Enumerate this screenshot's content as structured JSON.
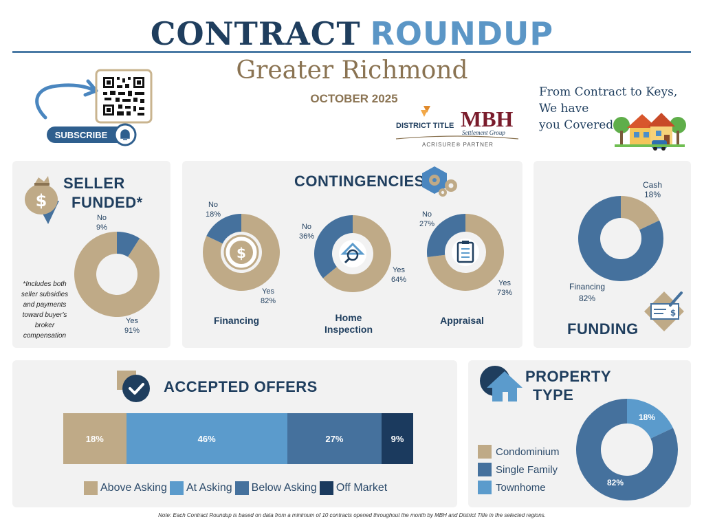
{
  "header": {
    "title_part1": "CONTRACT",
    "title_part2": "ROUNDUP",
    "region": "Greater Richmond",
    "month": "OCTOBER 2025",
    "subscribe_label": "SUBSCRIBE",
    "tagline_line1": "From Contract to Keys,",
    "tagline_line2": "We have",
    "tagline_line3": "you Covered"
  },
  "logos": {
    "district_title": "DISTRICT TITLE",
    "mbh": "MBH",
    "mbh_sub": "Settlement Group",
    "acrisure": "ACRISURE® PARTNER"
  },
  "colors": {
    "tan": "#bfaa87",
    "navy_blue": "#45719d",
    "light_blue": "#5b9bcc",
    "dark_navy": "#1b3a5e",
    "panel_bg": "#f2f2f2"
  },
  "seller_funded": {
    "title_line1": "SELLER",
    "title_line2": "FUNDED*",
    "no_label": "No",
    "no_value": "9%",
    "yes_label": "Yes",
    "yes_value": "91%",
    "footnote": "*Includes both seller subsidies and payments toward buyer's broker compensation",
    "icon": "money-bag-icon"
  },
  "contingencies": {
    "title": "CONTINGENCIES",
    "icon": "gears-icon",
    "items": [
      {
        "name": "Financing",
        "yes_label": "Yes",
        "yes_value": "82%",
        "no_label": "No",
        "no_value": "18%",
        "yes_pct": 82,
        "icon": "dollar-coin-icon"
      },
      {
        "name_line1": "Home",
        "name_line2": "Inspection",
        "yes_label": "Yes",
        "yes_value": "64%",
        "no_label": "No",
        "no_value": "36%",
        "yes_pct": 64,
        "icon": "house-magnifier-icon"
      },
      {
        "name": "Appraisal",
        "yes_label": "Yes",
        "yes_value": "73%",
        "no_label": "No",
        "no_value": "27%",
        "yes_pct": 73,
        "icon": "clipboard-icon"
      }
    ]
  },
  "funding": {
    "title": "FUNDING",
    "icon": "check-pen-icon",
    "cash_label": "Cash",
    "cash_value": "18%",
    "financing_label": "Financing",
    "financing_value": "82%"
  },
  "accepted_offers": {
    "title": "ACCEPTED OFFERS",
    "icon": "checkmark-icon",
    "segments": [
      {
        "label": "Above Asking",
        "value": "18%",
        "pct": 18,
        "color": "#bfaa87"
      },
      {
        "label": "At Asking",
        "value": "46%",
        "pct": 46,
        "color": "#5b9bcc"
      },
      {
        "label": "Below Asking",
        "value": "27%",
        "pct": 27,
        "color": "#45719d"
      },
      {
        "label": "Off Market",
        "value": "9%",
        "pct": 9,
        "color": "#1b3a5e"
      }
    ]
  },
  "property_type": {
    "title_line1": "PROPERTY",
    "title_line2": "TYPE",
    "icon": "house-icon",
    "legend": [
      {
        "label": "Condominium",
        "color": "#bfaa87"
      },
      {
        "label": "Single Family",
        "color": "#45719d"
      },
      {
        "label": "Townhome",
        "color": "#5b9bcc"
      }
    ],
    "townhome_value": "18%",
    "single_family_value": "82%"
  },
  "note": "Note: Each Contract Roundup is based on data from a minimum of 10 contracts opened throughout the month by MBH and District Title in the selected regions.",
  "chart_data": [
    {
      "type": "pie",
      "title": "SELLER FUNDED*",
      "categories": [
        "No",
        "Yes"
      ],
      "values": [
        9,
        91
      ]
    },
    {
      "type": "pie",
      "title": "Financing",
      "categories": [
        "No",
        "Yes"
      ],
      "values": [
        18,
        82
      ]
    },
    {
      "type": "pie",
      "title": "Home Inspection",
      "categories": [
        "No",
        "Yes"
      ],
      "values": [
        36,
        64
      ]
    },
    {
      "type": "pie",
      "title": "Appraisal",
      "categories": [
        "No",
        "Yes"
      ],
      "values": [
        27,
        73
      ]
    },
    {
      "type": "pie",
      "title": "FUNDING",
      "categories": [
        "Cash",
        "Financing"
      ],
      "values": [
        18,
        82
      ]
    },
    {
      "type": "bar",
      "title": "ACCEPTED OFFERS",
      "categories": [
        "Above Asking",
        "At Asking",
        "Below Asking",
        "Off Market"
      ],
      "values": [
        18,
        46,
        27,
        9
      ]
    },
    {
      "type": "pie",
      "title": "PROPERTY TYPE",
      "categories": [
        "Townhome",
        "Single Family"
      ],
      "values": [
        18,
        82
      ]
    }
  ]
}
